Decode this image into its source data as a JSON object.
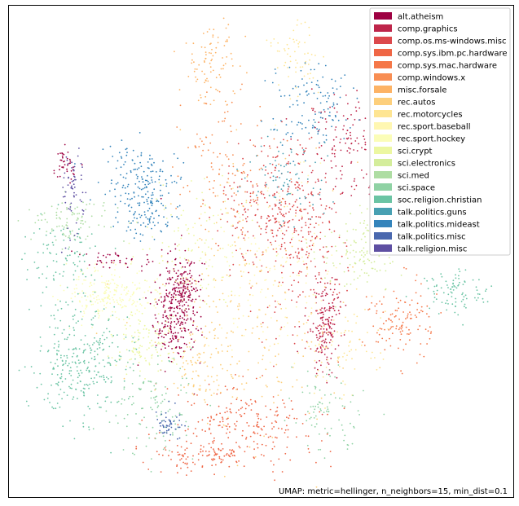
{
  "chart_data": {
    "type": "scatter",
    "title": "",
    "xlabel": "",
    "ylabel": "",
    "grid": false,
    "axes_ticks": false,
    "legend_placement": "top-right",
    "annotation": "UMAP: metric=hellinger, n_neighbors=15, min_dist=0.1",
    "series": [
      {
        "name": "alt.atheism",
        "color": "#9e0142"
      },
      {
        "name": "comp.graphics",
        "color": "#be254a"
      },
      {
        "name": "comp.os.ms-windows.misc",
        "color": "#dc494c"
      },
      {
        "name": "comp.sys.ibm.pc.hardware",
        "color": "#ef6645"
      },
      {
        "name": "comp.sys.mac.hardware",
        "color": "#f57748"
      },
      {
        "name": "comp.windows.x",
        "color": "#f88e53"
      },
      {
        "name": "misc.forsale",
        "color": "#fdb365"
      },
      {
        "name": "rec.autos",
        "color": "#fdcf7c"
      },
      {
        "name": "rec.motorcycles",
        "color": "#fee593"
      },
      {
        "name": "rec.sport.baseball",
        "color": "#fff7b2"
      },
      {
        "name": "rec.sport.hockey",
        "color": "#fbfdb8"
      },
      {
        "name": "sci.crypt",
        "color": "#ecf7a1"
      },
      {
        "name": "sci.electronics",
        "color": "#d4ed9b"
      },
      {
        "name": "sci.med",
        "color": "#aedda3"
      },
      {
        "name": "sci.space",
        "color": "#8fd2a4"
      },
      {
        "name": "soc.religion.christian",
        "color": "#6bc4a4"
      },
      {
        "name": "talk.politics.guns",
        "color": "#48a0b2"
      },
      {
        "name": "talk.politics.mideast",
        "color": "#3484bb"
      },
      {
        "name": "talk.politics.misc",
        "color": "#4a68ae"
      },
      {
        "name": "talk.religion.misc",
        "color": "#5e4fa2"
      }
    ]
  }
}
